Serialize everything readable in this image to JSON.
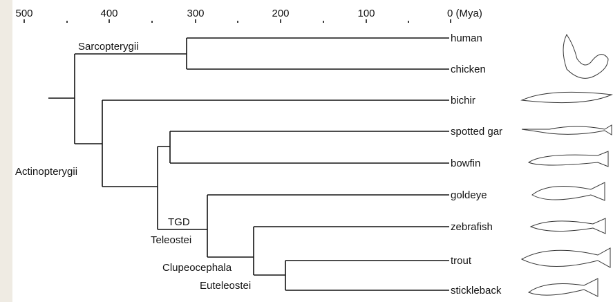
{
  "axis": {
    "ticks": [
      "500",
      "400",
      "300",
      "200",
      "100",
      "0 (Mya)"
    ]
  },
  "leaves": [
    "human",
    "chicken",
    "bichir",
    "spotted gar",
    "bowfin",
    "goldeye",
    "zebrafish",
    "trout",
    "stickleback"
  ],
  "clades": [
    "Sarcopterygii",
    "Actinopterygii",
    "TGD",
    "Teleostei",
    "Clupeocephala",
    "Euteleostei"
  ]
}
